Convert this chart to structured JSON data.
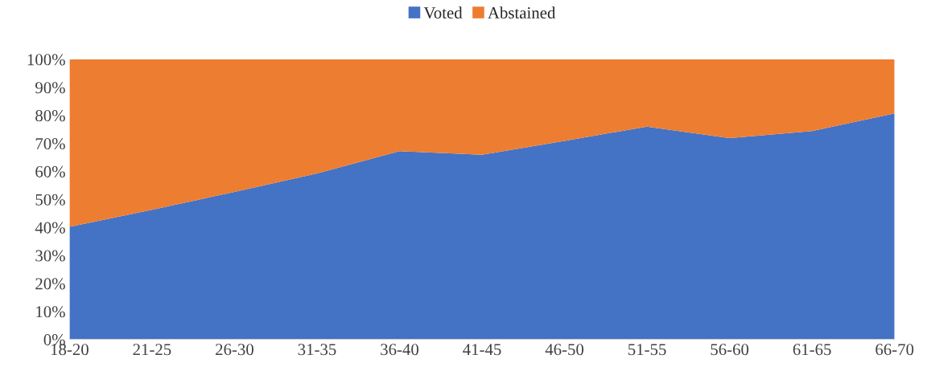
{
  "chart_data": {
    "type": "area",
    "stacked": true,
    "categories": [
      "18-20",
      "21-25",
      "26-30",
      "31-35",
      "36-40",
      "41-45",
      "46-50",
      "51-55",
      "56-60",
      "61-65",
      "66-70"
    ],
    "series": [
      {
        "name": "Voted",
        "color": "#4472c4",
        "values": [
          40.2,
          46.3,
          52.7,
          59.3,
          67.2,
          65.9,
          70.9,
          76.0,
          71.9,
          74.4,
          80.7
        ]
      },
      {
        "name": "Abstained",
        "color": "#ed7d31",
        "values": [
          59.8,
          53.7,
          47.3,
          40.7,
          32.8,
          34.1,
          29.1,
          24.0,
          28.1,
          25.6,
          19.3
        ]
      }
    ],
    "ylim": [
      0,
      100
    ],
    "yticks": [
      {
        "value": 0,
        "label": "0%"
      },
      {
        "value": 10,
        "label": "10%"
      },
      {
        "value": 20,
        "label": "20%"
      },
      {
        "value": 30,
        "label": "30%"
      },
      {
        "value": 40,
        "label": "40%"
      },
      {
        "value": 50,
        "label": "50%"
      },
      {
        "value": 60,
        "label": "60%"
      },
      {
        "value": 70,
        "label": "70%"
      },
      {
        "value": 80,
        "label": "80%"
      },
      {
        "value": 90,
        "label": "90%"
      },
      {
        "value": 100,
        "label": "100%"
      }
    ],
    "legend": "top",
    "grid": false
  }
}
